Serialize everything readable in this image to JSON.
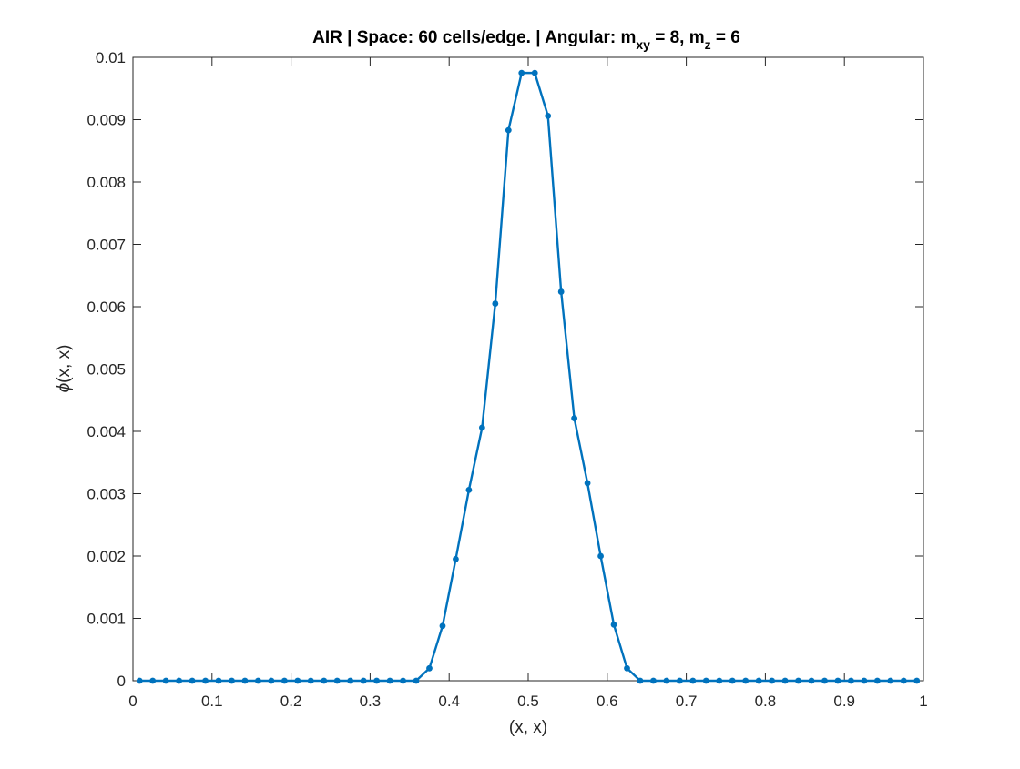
{
  "title": {
    "part1": "AIR | Space: 60 cells/edge. | Angular: m",
    "sub1": "xy",
    "part2": " = 8, m",
    "sub2": "z",
    "part3": " = 6"
  },
  "chart_data": {
    "type": "line",
    "title": "AIR | Space: 60 cells/edge. | Angular: m_xy = 8, m_z = 6",
    "xlabel": "(x, x)",
    "ylabel": "ϕ(x, x)",
    "ylabel_symbol": "ϕ",
    "ylabel_rest": "(x, x)",
    "xlim": [
      0,
      1
    ],
    "ylim": [
      0,
      0.01
    ],
    "xticks": [
      "0",
      "0.1",
      "0.2",
      "0.3",
      "0.4",
      "0.5",
      "0.6",
      "0.7",
      "0.8",
      "0.9",
      "1"
    ],
    "xtick_values": [
      0,
      0.1,
      0.2,
      0.3,
      0.4,
      0.5,
      0.6,
      0.7,
      0.8,
      0.9,
      1
    ],
    "yticks": [
      "0",
      "0.001",
      "0.002",
      "0.003",
      "0.004",
      "0.005",
      "0.006",
      "0.007",
      "0.008",
      "0.009",
      "0.01"
    ],
    "ytick_values": [
      0,
      0.001,
      0.002,
      0.003,
      0.004,
      0.005,
      0.006,
      0.007,
      0.008,
      0.009,
      0.01
    ],
    "grid": false,
    "marker": "filled-circle",
    "color": "#0072BD",
    "series": [
      {
        "x": [
          0.00833,
          0.025,
          0.04167,
          0.05833,
          0.075,
          0.09167,
          0.10833,
          0.125,
          0.14167,
          0.15833,
          0.175,
          0.19167,
          0.20833,
          0.225,
          0.24167,
          0.25833,
          0.275,
          0.29167,
          0.30833,
          0.325,
          0.34167,
          0.35833,
          0.375,
          0.39167,
          0.40833,
          0.425,
          0.44167,
          0.45833,
          0.475,
          0.49167,
          0.50833,
          0.525,
          0.54167,
          0.55833,
          0.575,
          0.59167,
          0.60833,
          0.625,
          0.64167,
          0.65833,
          0.675,
          0.69167,
          0.70833,
          0.725,
          0.74167,
          0.75833,
          0.775,
          0.79167,
          0.80833,
          0.825,
          0.84167,
          0.85833,
          0.875,
          0.89167,
          0.90833,
          0.925,
          0.94167,
          0.95833,
          0.975,
          0.99167
        ],
        "values": [
          0,
          0,
          0,
          0,
          0,
          0,
          0,
          0,
          0,
          0,
          0,
          0,
          0,
          0,
          0,
          0,
          0,
          0,
          0,
          0,
          0,
          0,
          0.0002,
          0.00088,
          0.00195,
          0.00306,
          0.00406,
          0.00605,
          0.00883,
          0.00975,
          0.00975,
          0.00906,
          0.00624,
          0.00421,
          0.00317,
          0.002,
          0.0009,
          0.0002,
          0,
          0,
          0,
          0,
          0,
          0,
          0,
          0,
          0,
          0,
          0,
          0,
          0,
          0,
          0,
          0,
          0,
          0,
          0,
          0,
          0,
          0
        ]
      }
    ]
  }
}
